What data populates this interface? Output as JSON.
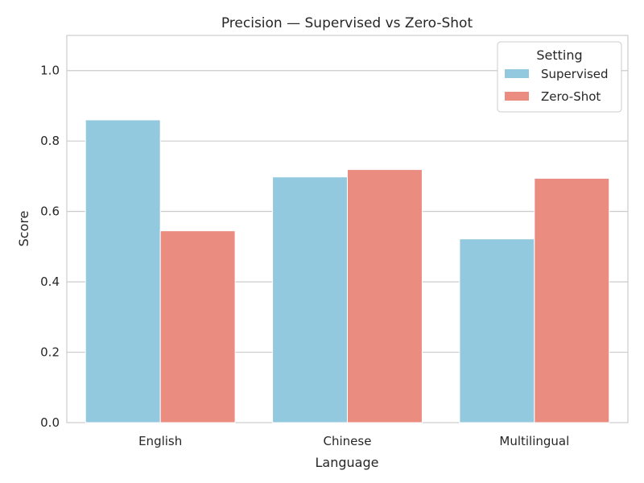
{
  "chart_data": {
    "type": "bar",
    "title": "Precision — Supervised vs Zero-Shot",
    "xlabel": "Language",
    "ylabel": "Score",
    "categories": [
      "English",
      "Chinese",
      "Multilingual"
    ],
    "series": [
      {
        "name": "Supervised",
        "values": [
          0.86,
          0.698,
          0.522
        ],
        "color": "#92c9df"
      },
      {
        "name": "Zero-Shot",
        "values": [
          0.545,
          0.719,
          0.694
        ],
        "color": "#ea8c80"
      }
    ],
    "ylim": [
      0,
      1.1
    ],
    "yticks": [
      "0.0",
      "0.2",
      "0.4",
      "0.6",
      "0.8",
      "1.0"
    ],
    "grid": true,
    "legend": {
      "title": "Setting",
      "placement": "top-right"
    }
  }
}
